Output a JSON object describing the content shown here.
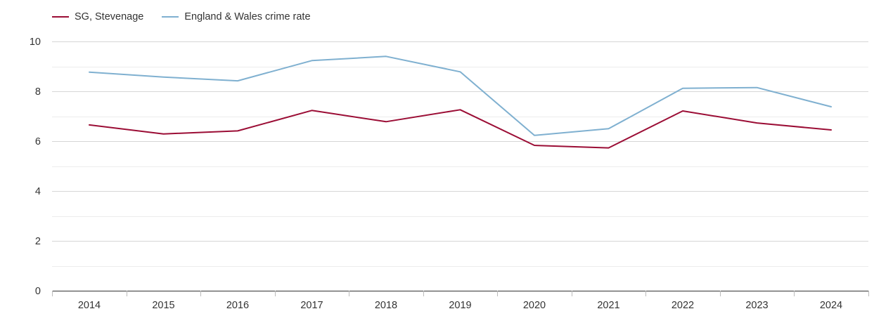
{
  "chart_data": {
    "type": "line",
    "title": "",
    "xlabel": "",
    "ylabel": "",
    "x": [
      "2014",
      "2015",
      "2016",
      "2017",
      "2018",
      "2019",
      "2020",
      "2021",
      "2022",
      "2023",
      "2024"
    ],
    "ylim": [
      0,
      10
    ],
    "y_ticks": [
      "0",
      "2",
      "4",
      "6",
      "8",
      "10"
    ],
    "grid": true,
    "legend_position": "top-left",
    "series": [
      {
        "name": "SG, Stevenage",
        "color": "#9b0d35",
        "values": [
          6.65,
          6.29,
          6.41,
          7.23,
          6.78,
          7.26,
          5.83,
          5.73,
          7.21,
          6.73,
          6.45
        ]
      },
      {
        "name": "England & Wales crime rate",
        "color": "#7fb0d0",
        "values": [
          8.77,
          8.57,
          8.42,
          9.23,
          9.4,
          8.78,
          6.23,
          6.5,
          8.12,
          8.15,
          7.38
        ]
      }
    ]
  }
}
